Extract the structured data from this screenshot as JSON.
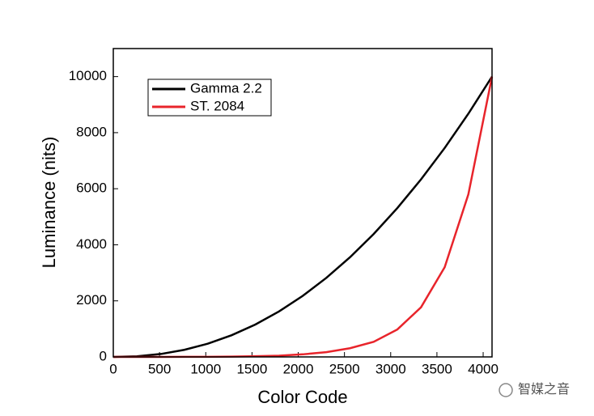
{
  "chart_data": {
    "type": "line",
    "xlabel": "Color Code",
    "ylabel": "Luminance (nits)",
    "x": [
      0,
      256,
      512,
      768,
      1024,
      1280,
      1536,
      1792,
      2048,
      2304,
      2560,
      2816,
      3072,
      3328,
      3584,
      3840,
      4096
    ],
    "series": [
      {
        "name": "Gamma 2.2",
        "color": "#000000",
        "values": [
          0,
          22,
          103,
          252,
          474,
          774,
          1156,
          1622,
          2176,
          2820,
          3556,
          4385,
          5311,
          6333,
          7454,
          8676,
          10000
        ]
      },
      {
        "name": "ST. 2084",
        "color": "#e8242b",
        "values": [
          0,
          0,
          1,
          2,
          5,
          12,
          25,
          45,
          92,
          170,
          310,
          540,
          980,
          1770,
          3200,
          5800,
          10000
        ]
      }
    ],
    "xlim": [
      0,
      4096
    ],
    "ylim": [
      0,
      11000
    ],
    "xticks": [
      0,
      500,
      1000,
      1500,
      2000,
      2500,
      3000,
      3500,
      4000
    ],
    "yticks": [
      0,
      2000,
      4000,
      6000,
      8000,
      10000
    ],
    "legend": "upper left",
    "watermark": "智媒之音"
  }
}
